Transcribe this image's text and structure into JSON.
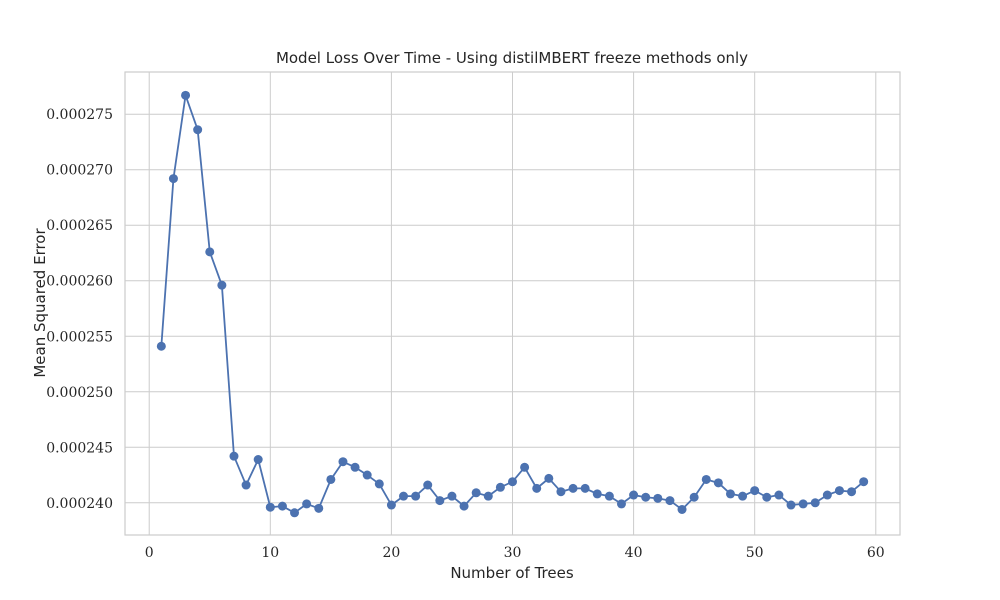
{
  "chart_data": {
    "type": "line",
    "title": "Model Loss Over Time - Using distilMBERT freeze methods only",
    "xlabel": "Number of Trees",
    "ylabel": "Mean Squared Error",
    "xlim": [
      -2,
      62
    ],
    "ylim": [
      0.0002371,
      0.0002788
    ],
    "xticks": [
      0,
      10,
      20,
      30,
      40,
      50,
      60
    ],
    "yticks": [
      0.00024,
      0.000245,
      0.00025,
      0.000255,
      0.00026,
      0.000265,
      0.00027,
      0.000275
    ],
    "ytick_labels": [
      "0.000240",
      "0.000245",
      "0.000250",
      "0.000255",
      "0.000260",
      "0.000265",
      "0.000270",
      "0.000275"
    ],
    "grid": true,
    "color": "#4c72b0",
    "series": [
      {
        "x": [
          1,
          2,
          3,
          4,
          5,
          6,
          7,
          8,
          9,
          10,
          11,
          12,
          13,
          14,
          15,
          16,
          17,
          18,
          19,
          20,
          21,
          22,
          23,
          24,
          25,
          26,
          27,
          28,
          29,
          30,
          31,
          32,
          33,
          34,
          35,
          36,
          37,
          38,
          39,
          40,
          41,
          42,
          43,
          44,
          45,
          46,
          47,
          48,
          49,
          50,
          51,
          52,
          53,
          54,
          55,
          56,
          57,
          58,
          59
        ],
        "y": [
          0.0002541,
          0.0002692,
          0.0002767,
          0.0002736,
          0.0002626,
          0.0002596,
          0.0002442,
          0.0002416,
          0.0002439,
          0.0002396,
          0.0002397,
          0.0002391,
          0.0002399,
          0.0002395,
          0.0002421,
          0.0002437,
          0.0002432,
          0.0002425,
          0.0002417,
          0.0002398,
          0.0002406,
          0.0002406,
          0.0002416,
          0.0002402,
          0.0002406,
          0.0002397,
          0.0002409,
          0.0002406,
          0.0002414,
          0.0002419,
          0.0002432,
          0.0002413,
          0.0002422,
          0.000241,
          0.0002413,
          0.0002413,
          0.0002408,
          0.0002406,
          0.0002399,
          0.0002407,
          0.0002405,
          0.0002404,
          0.0002402,
          0.0002394,
          0.0002405,
          0.0002421,
          0.0002418,
          0.0002408,
          0.0002406,
          0.0002411,
          0.0002405,
          0.0002407,
          0.0002398,
          0.0002399,
          0.00024,
          0.0002407,
          0.0002411,
          0.000241,
          0.0002419
        ]
      }
    ]
  }
}
